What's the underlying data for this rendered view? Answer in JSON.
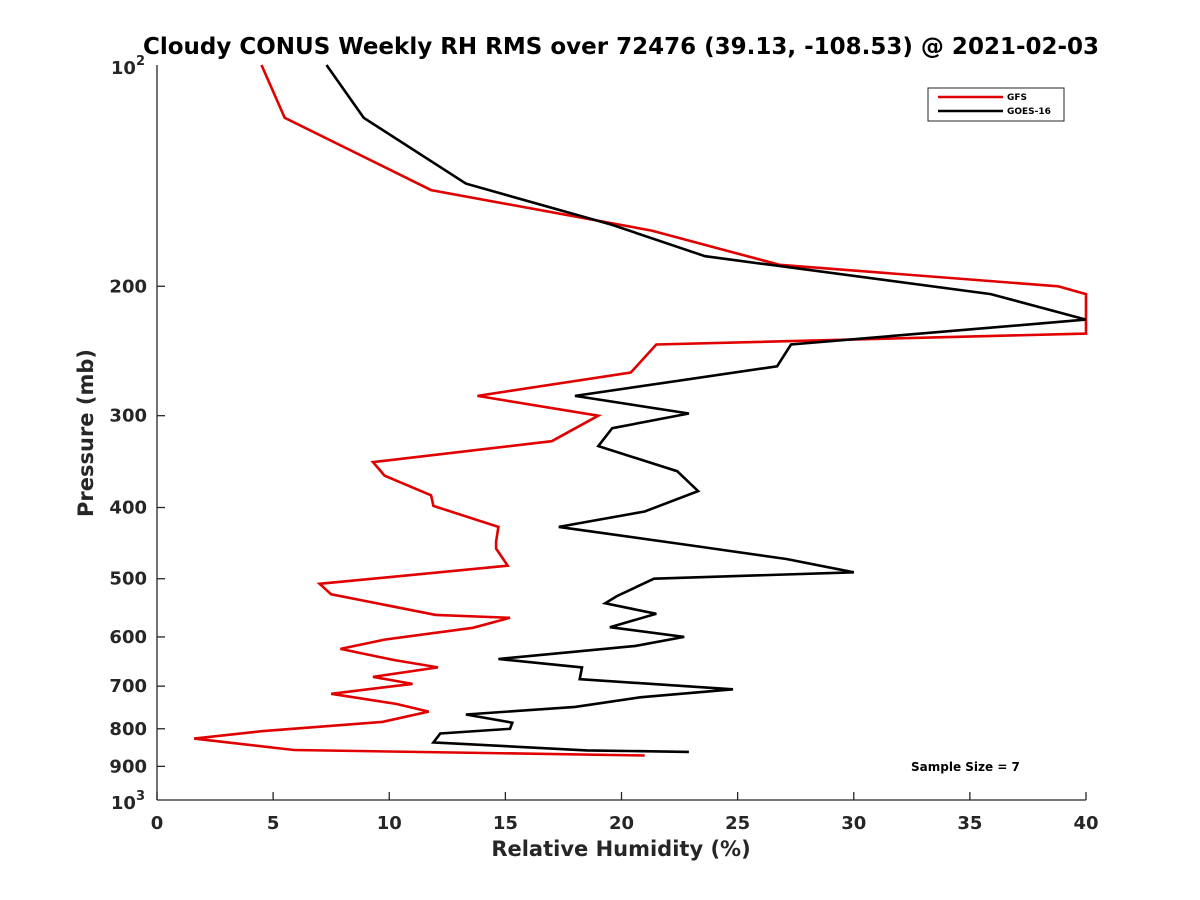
{
  "chart_data": {
    "type": "line",
    "title": "Cloudy CONUS Weekly RH RMS over 72476 (39.13, -108.53) @ 2021-02-03",
    "xlabel": "Relative Humidity (%)",
    "ylabel": "Pressure (mb)",
    "xlim": [
      0,
      40
    ],
    "ylim": [
      100,
      1000
    ],
    "y_scale": "log",
    "y_reversed": true,
    "x_ticks": [
      "0",
      "5",
      "10",
      "15",
      "20",
      "25",
      "30",
      "35",
      "40"
    ],
    "y_ticks": [
      {
        "value": 200,
        "label": "200"
      },
      {
        "value": 300,
        "label": "300"
      },
      {
        "value": 400,
        "label": "400"
      },
      {
        "value": 500,
        "label": "500"
      },
      {
        "value": 600,
        "label": "600"
      },
      {
        "value": 700,
        "label": "700"
      },
      {
        "value": 800,
        "label": "800"
      },
      {
        "value": 900,
        "label": "900"
      }
    ],
    "y_end_ticks": [
      {
        "value": 100,
        "base": "10",
        "exp": "2"
      },
      {
        "value": 1000,
        "base": "10",
        "exp": "3"
      }
    ],
    "grid": false,
    "legend_position": "top-right",
    "series": [
      {
        "name": "GFS",
        "color": "#e00000",
        "x": [
          4.5,
          5.5,
          11.8,
          21.3,
          26.8,
          38.8,
          40.0,
          40.0,
          21.5,
          20.4,
          13.8,
          19.0,
          17.0,
          9.3,
          9.8,
          11.8,
          11.9,
          14.7,
          14.6,
          14.6,
          15.1,
          7.0,
          7.5,
          12.0,
          15.2,
          13.6,
          9.8,
          7.9,
          10.2,
          12.1,
          9.3,
          11.0,
          7.5,
          10.3,
          11.7,
          9.7,
          4.5,
          1.6,
          5.9,
          21.0
        ],
        "y": [
          100,
          118,
          148,
          168,
          187,
          200,
          205,
          232,
          240,
          262,
          282,
          300,
          325,
          347,
          362,
          385,
          398,
          425,
          445,
          455,
          480,
          508,
          525,
          560,
          565,
          583,
          605,
          623,
          645,
          660,
          680,
          695,
          717,
          740,
          758,
          783,
          806,
          825,
          855,
          870
        ]
      },
      {
        "name": "GOES-16",
        "color": "#000000",
        "x": [
          7.3,
          8.9,
          13.3,
          19.6,
          23.6,
          35.9,
          40.0,
          27.3,
          26.7,
          18.0,
          22.9,
          19.6,
          19.0,
          22.4,
          23.3,
          21.0,
          17.3,
          22.9,
          27.1,
          30.0,
          21.4,
          19.8,
          19.3,
          21.5,
          19.5,
          22.7,
          20.6,
          14.7,
          18.3,
          18.2,
          24.8,
          20.8,
          18.0,
          13.3,
          15.3,
          15.2,
          12.2,
          11.9,
          18.5,
          22.9
        ],
        "y": [
          100,
          118,
          145,
          165,
          182,
          205,
          222,
          240,
          257,
          282,
          298,
          312,
          330,
          357,
          380,
          405,
          425,
          450,
          470,
          490,
          500,
          528,
          540,
          558,
          582,
          600,
          617,
          643,
          660,
          685,
          707,
          725,
          747,
          765,
          785,
          800,
          812,
          835,
          856,
          860
        ]
      }
    ],
    "annotation": "Sample Size = 7"
  }
}
